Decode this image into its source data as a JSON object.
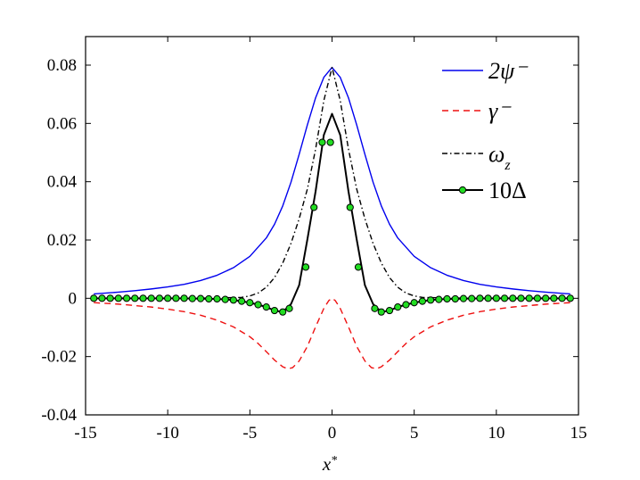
{
  "chart_data": {
    "type": "line",
    "title": "",
    "xlabel": "x*",
    "ylabel": "",
    "xlim": [
      -15,
      15
    ],
    "ylim": [
      -0.04,
      0.09
    ],
    "x_ticks": [
      -15,
      -10,
      -5,
      0,
      5,
      10,
      15
    ],
    "x_tick_labels": [
      "-15",
      "-10",
      "-5",
      "0",
      "5",
      "10",
      "15"
    ],
    "y_ticks": [
      -0.04,
      -0.02,
      0,
      0.02,
      0.04,
      0.06,
      0.08
    ],
    "y_tick_labels": [
      "-0.04",
      "-0.02",
      "0",
      "0.02",
      "0.04",
      "0.06",
      "0.08"
    ],
    "grid": false,
    "legend_position": "top-right",
    "series": [
      {
        "name": "2ψ⁻",
        "color": "#0000ee",
        "style": "solid",
        "x": [
          -14.5,
          -13,
          -12,
          -11,
          -10,
          -9,
          -8,
          -7,
          -6,
          -5,
          -4,
          -3.5,
          -3,
          -2.5,
          -2,
          -1.5,
          -1,
          -0.5,
          0,
          0.5,
          1,
          1.5,
          2,
          2.5,
          3,
          3.5,
          4,
          5,
          6,
          7,
          8,
          9,
          10,
          11,
          12,
          13,
          14.5
        ],
        "y": [
          0.0015,
          0.0021,
          0.0026,
          0.0032,
          0.0039,
          0.0048,
          0.0061,
          0.0079,
          0.0105,
          0.0144,
          0.0207,
          0.0254,
          0.0317,
          0.0398,
          0.0494,
          0.0595,
          0.0688,
          0.0758,
          0.0792,
          0.0758,
          0.0688,
          0.0595,
          0.0494,
          0.0398,
          0.0317,
          0.0254,
          0.0207,
          0.0144,
          0.0105,
          0.0079,
          0.0061,
          0.0048,
          0.0039,
          0.0032,
          0.0026,
          0.0021,
          0.0015
        ]
      },
      {
        "name": "γ⁻",
        "color": "#ee1111",
        "style": "dashed",
        "x": [
          -14.5,
          -13,
          -12,
          -11,
          -10,
          -9,
          -8,
          -7,
          -6,
          -5,
          -4.5,
          -4,
          -3.5,
          -3,
          -2.7,
          -2.4,
          -2,
          -1.5,
          -1,
          -0.5,
          -0.2,
          0,
          0.2,
          0.5,
          1,
          1.5,
          2,
          2.4,
          2.7,
          3,
          3.5,
          4,
          4.5,
          5,
          6,
          7,
          8,
          9,
          10,
          11,
          12,
          13,
          14.5
        ],
        "y": [
          -0.0015,
          -0.002,
          -0.0025,
          -0.003,
          -0.0037,
          -0.0046,
          -0.0058,
          -0.0075,
          -0.0098,
          -0.0132,
          -0.0155,
          -0.0183,
          -0.0212,
          -0.0235,
          -0.0242,
          -0.0238,
          -0.0215,
          -0.0165,
          -0.0098,
          -0.0035,
          -0.0008,
          0,
          -0.0008,
          -0.0035,
          -0.0098,
          -0.0165,
          -0.0215,
          -0.0238,
          -0.0242,
          -0.0235,
          -0.0212,
          -0.0183,
          -0.0155,
          -0.0132,
          -0.0098,
          -0.0075,
          -0.0058,
          -0.0046,
          -0.0037,
          -0.003,
          -0.0025,
          -0.002,
          -0.0015
        ]
      },
      {
        "name": "ω_z",
        "color": "#000000",
        "style": "dashdot",
        "x": [
          -14.5,
          -10,
          -7,
          -5.5,
          -5,
          -4.5,
          -4,
          -3.5,
          -3,
          -2.5,
          -2,
          -1.5,
          -1,
          -0.5,
          0,
          0.5,
          1,
          1.5,
          2,
          2.5,
          3,
          3.5,
          4,
          4.5,
          5,
          5.5,
          7,
          10,
          14.5
        ],
        "y": [
          0,
          0,
          0.0001,
          0.0003,
          0.0008,
          0.0018,
          0.0038,
          0.0071,
          0.0121,
          0.0188,
          0.0273,
          0.0375,
          0.0512,
          0.0678,
          0.0792,
          0.0678,
          0.0512,
          0.0375,
          0.0273,
          0.0188,
          0.0121,
          0.0071,
          0.0038,
          0.0018,
          0.0008,
          0.0003,
          0.0001,
          0,
          0
        ]
      },
      {
        "name": "10Δ",
        "color": "#000000",
        "style": "solid-markers",
        "marker_color": "#22dd22",
        "x": [
          -14.5,
          -14,
          -13.5,
          -13,
          -12.5,
          -12,
          -11.5,
          -11,
          -10.5,
          -10,
          -9.5,
          -9,
          -8.5,
          -8,
          -7.5,
          -7,
          -6.5,
          -6,
          -5.5,
          -5,
          -4.5,
          -4,
          -3.5,
          -3,
          -2.5,
          -2,
          -1.5,
          -1,
          -0.5,
          0,
          0.5,
          1,
          1.5,
          2,
          2.5,
          3,
          3.5,
          4,
          4.5,
          5,
          5.5,
          6,
          6.5,
          7,
          7.5,
          8,
          8.5,
          9,
          9.5,
          10,
          10.5,
          11,
          11.5,
          12,
          12.5,
          13,
          13.5,
          14,
          14.5
        ],
        "y": [
          0,
          0,
          0,
          0,
          0,
          0,
          0,
          0,
          0,
          0,
          0,
          0,
          -0.0001,
          -0.0001,
          -0.0002,
          -0.0002,
          -0.0004,
          -0.0006,
          -0.001,
          -0.0015,
          -0.0022,
          -0.003,
          -0.0042,
          -0.0047,
          -0.002,
          0.0045,
          0.0202,
          0.0367,
          0.056,
          0.0633,
          0.056,
          0.0367,
          0.0202,
          0.0045,
          -0.002,
          -0.0047,
          -0.0042,
          -0.003,
          -0.0022,
          -0.0015,
          -0.001,
          -0.0006,
          -0.0004,
          -0.0002,
          -0.0002,
          -0.0001,
          -0.0001,
          0,
          0,
          0,
          0,
          0,
          0,
          0,
          0,
          0,
          0,
          0,
          0
        ],
        "marker_x": [
          -14.5,
          -14,
          -13.5,
          -13,
          -12.5,
          -12,
          -11.5,
          -11,
          -10.5,
          -10,
          -9.5,
          -9,
          -8.5,
          -8,
          -7.5,
          -7,
          -6.5,
          -6,
          -5.5,
          -5,
          -4.5,
          -4,
          -3.5,
          -3,
          -2.6,
          -1.6,
          -1.1,
          -0.6,
          -0.1,
          1.1,
          1.6,
          2.6,
          3,
          3.5,
          4,
          4.5,
          5,
          5.5,
          6,
          6.5,
          7,
          7.5,
          8,
          8.5,
          9,
          9.5,
          10,
          10.5,
          11,
          11.5,
          12,
          12.5,
          13,
          13.5,
          14,
          14.5
        ],
        "marker_y": [
          0,
          0,
          0,
          0,
          0,
          0,
          0,
          0,
          0,
          0,
          0,
          0,
          -0.0001,
          -0.0001,
          -0.0002,
          -0.0002,
          -0.0004,
          -0.0006,
          -0.001,
          -0.0015,
          -0.0022,
          -0.003,
          -0.0042,
          -0.0047,
          -0.0035,
          0.0107,
          0.0312,
          0.0535,
          0.0535,
          0.0312,
          0.0107,
          -0.0035,
          -0.0047,
          -0.0042,
          -0.003,
          -0.0022,
          -0.0015,
          -0.001,
          -0.0006,
          -0.0004,
          -0.0002,
          -0.0002,
          -0.0001,
          -0.0001,
          0,
          0,
          0,
          0,
          0,
          0,
          0,
          0,
          0,
          0,
          0,
          0
        ]
      }
    ]
  }
}
